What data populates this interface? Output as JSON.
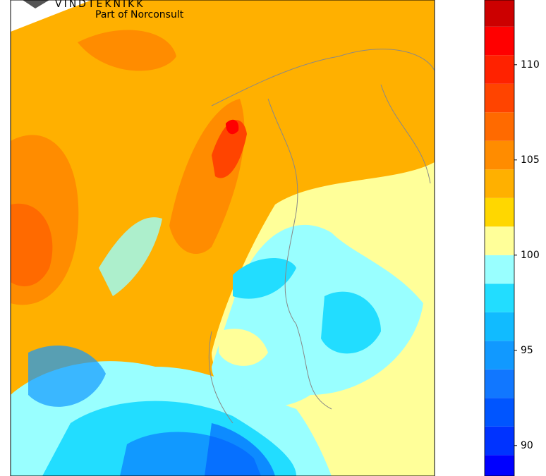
{
  "logo": {
    "name": "VINDTEKNIKK",
    "tagline": "Part of Norconsult"
  },
  "colorbar": {
    "lim": [
      88.4,
      113.4
    ],
    "ticks": [
      90,
      95,
      100,
      105,
      110
    ],
    "boundaries": [
      89.5,
      91,
      92.5,
      94,
      95.5,
      97,
      98.5,
      100,
      101.5,
      103,
      104.5,
      106,
      107.5,
      109,
      110.5,
      112
    ],
    "colors": [
      "#0000ff",
      "#0033ff",
      "#0055ff",
      "#1177ff",
      "#1199ff",
      "#11bbff",
      "#22ddff",
      "#99ffff",
      "#ffff99",
      "#ffd700",
      "#ffb000",
      "#ff8c00",
      "#ff6a00",
      "#ff4400",
      "#ff2200",
      "#ff0000",
      "#cc0000"
    ]
  }
}
